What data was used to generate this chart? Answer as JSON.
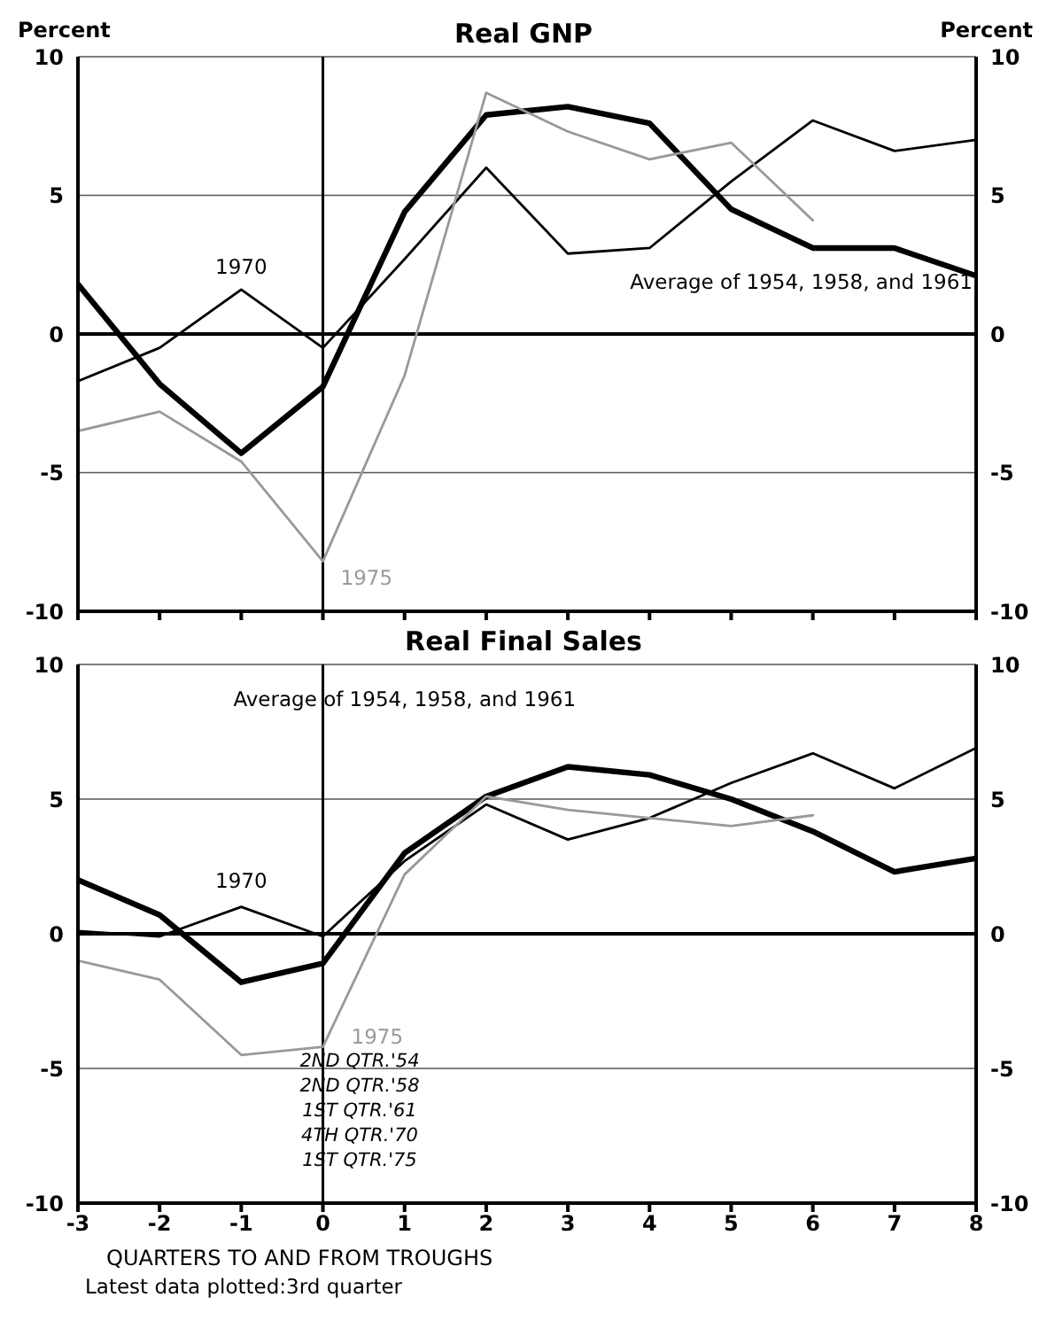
{
  "chart_data": [
    {
      "type": "line",
      "title": "Real GNP",
      "ylabel": "Percent",
      "y2label": "Percent",
      "x": [
        -3,
        -2,
        -1,
        0,
        1,
        2,
        3,
        4,
        5,
        6,
        7,
        8
      ],
      "xlim": [
        -3,
        8
      ],
      "xticks": [
        -3,
        -2,
        -1,
        0,
        1,
        2,
        3,
        4,
        5,
        6,
        7,
        8
      ],
      "ylim": [
        -10,
        10
      ],
      "yticks": [
        -10,
        -5,
        0,
        5,
        10
      ],
      "y2lim": [
        -10,
        10
      ],
      "y2ticks": [
        -10,
        -5,
        0,
        5,
        10
      ],
      "tick_labels": "y",
      "grid": "y",
      "legend": false,
      "marker": "none",
      "line_style": "solid",
      "ref_lines": [
        {
          "axis": "x",
          "value": 0,
          "color": "#000000"
        }
      ],
      "series": [
        {
          "name": "Average of 1954, 1958, and 1961",
          "color": "#000000",
          "values": [
            1.8,
            -1.8,
            -4.3,
            -1.9,
            4.4,
            7.9,
            8.2,
            7.6,
            4.5,
            3.1,
            3.1,
            2.1
          ]
        },
        {
          "name": "1970",
          "color": "#000000",
          "values": [
            -1.7,
            -0.5,
            1.6,
            -0.5,
            2.7,
            6.0,
            2.9,
            3.1,
            5.5,
            7.7,
            6.6,
            7.0
          ]
        },
        {
          "name": "1975",
          "color": "#999999",
          "values": [
            -3.5,
            -2.8,
            -4.6,
            -8.2,
            -1.5,
            8.7,
            7.3,
            6.3,
            6.9,
            4.1,
            null,
            null
          ]
        }
      ]
    },
    {
      "type": "line",
      "title": "Real Final Sales",
      "xlabel": "QUARTERS TO AND FROM TROUGHS",
      "x": [
        -3,
        -2,
        -1,
        0,
        1,
        2,
        3,
        4,
        5,
        6,
        7,
        8
      ],
      "xlim": [
        -3,
        8
      ],
      "xticks": [
        -3,
        -2,
        -1,
        0,
        1,
        2,
        3,
        4,
        5,
        6,
        7,
        8
      ],
      "ylim": [
        -10,
        10
      ],
      "yticks": [
        -10,
        -5,
        0,
        5,
        10
      ],
      "y2lim": [
        -10,
        10
      ],
      "y2ticks": [
        -10,
        -5,
        0,
        5,
        10
      ],
      "grid": "y",
      "legend": false,
      "marker": "none",
      "line_style": "solid",
      "ref_lines": [
        {
          "axis": "x",
          "value": 0,
          "color": "#000000"
        }
      ],
      "annotations": [
        "2ND QTR.'54",
        "2ND QTR.'58",
        "1ST QTR.'61",
        "4TH QTR.'70",
        "1ST QTR.'75",
        "Latest data plotted:3rd quarter"
      ],
      "series": [
        {
          "name": "Average of 1954, 1958, and 1961",
          "color": "#000000",
          "values": [
            2.0,
            0.7,
            -1.8,
            -1.1,
            3.0,
            5.1,
            6.2,
            5.9,
            5.0,
            3.8,
            2.3,
            2.8
          ]
        },
        {
          "name": "1970",
          "color": "#000000",
          "values": [
            0.1,
            -0.1,
            1.0,
            -0.1,
            2.7,
            4.8,
            3.5,
            4.3,
            5.6,
            6.7,
            5.4,
            6.9
          ]
        },
        {
          "name": "1975",
          "color": "#999999",
          "values": [
            -1.0,
            -1.7,
            -4.5,
            -4.2,
            2.2,
            5.1,
            4.6,
            4.3,
            4.0,
            4.4,
            null,
            null
          ]
        }
      ]
    }
  ]
}
